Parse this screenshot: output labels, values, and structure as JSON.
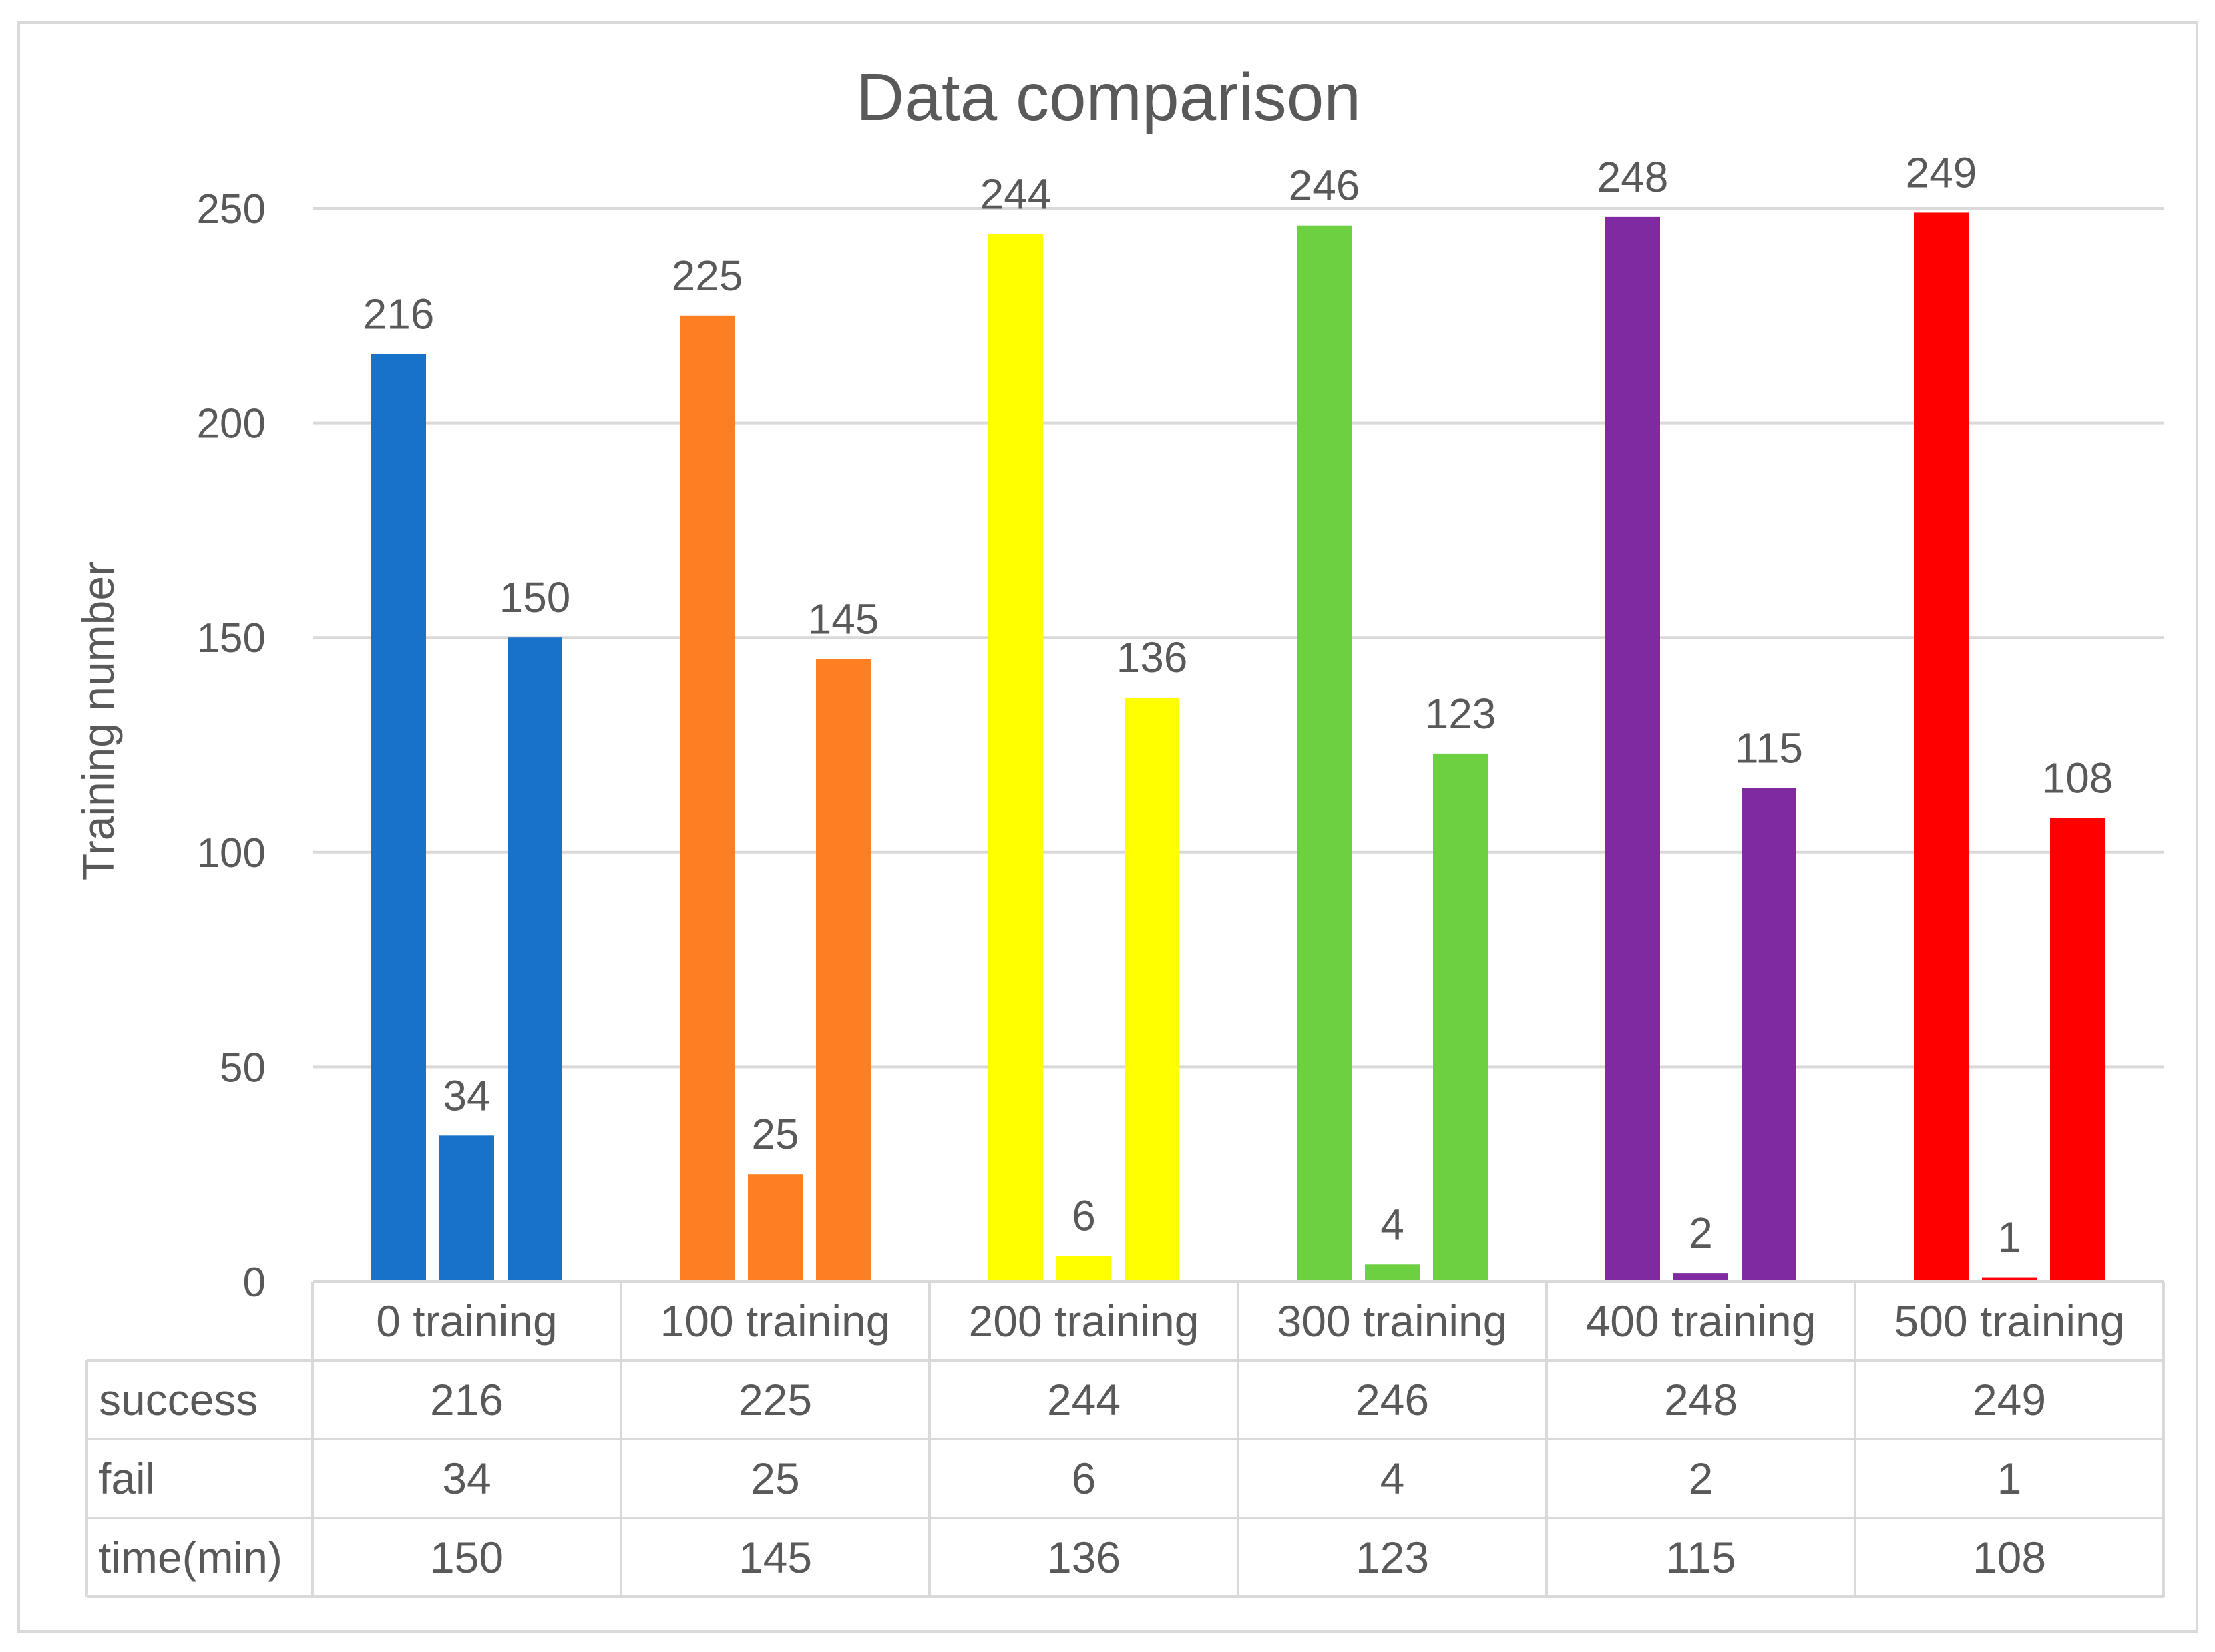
{
  "chart_data": {
    "type": "bar",
    "title": "Data comparison",
    "xlabel": "",
    "ylabel": "Training number",
    "ylim": [
      0,
      250
    ],
    "yticks": [
      "0",
      "50",
      "100",
      "150",
      "200",
      "250"
    ],
    "grid": true,
    "categories": [
      "0 training",
      "100 training",
      "200 training",
      "300 training",
      "400 training",
      "500 training"
    ],
    "category_colors": [
      "#1872c8",
      "#fe7f21",
      "#ffff00",
      "#6dd041",
      "#7f2aa1",
      "#ff0000"
    ],
    "series": [
      {
        "name": "success",
        "values": [
          216,
          225,
          244,
          246,
          248,
          249
        ]
      },
      {
        "name": "fail",
        "values": [
          34,
          25,
          6,
          4,
          2,
          1
        ]
      },
      {
        "name": "time(min)",
        "values": [
          150,
          145,
          136,
          123,
          115,
          108
        ]
      }
    ],
    "data_table": true
  }
}
